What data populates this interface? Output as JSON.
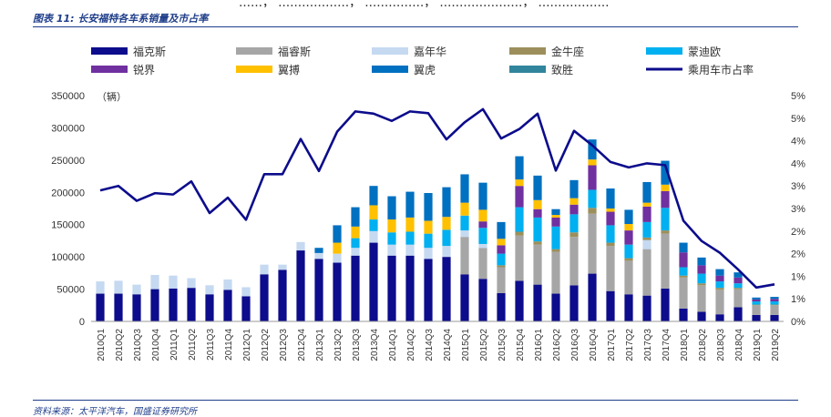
{
  "header": {
    "top_cut_text": "……，  ………………，  ……………，  …………………，  ………………",
    "title": "图表 11: 长安福特各车系销量及市占率"
  },
  "footer": {
    "source": "资料来源：太平洋汽车，国盛证券研究所"
  },
  "chart_data": {
    "type": "bar",
    "stacked": true,
    "title": "长安福特各车系销量及市占率",
    "ylabel_left": "（辆）",
    "ylim_left": [
      0,
      350000
    ],
    "yticks_left": [
      "0",
      "50000",
      "100000",
      "150000",
      "200000",
      "250000",
      "300000",
      "350000"
    ],
    "ylim_right": [
      0,
      5
    ],
    "yticks_right": [
      "0%",
      "1%",
      "1%",
      "2%",
      "2%",
      "3%",
      "3%",
      "4%",
      "4%",
      "5%",
      "5%"
    ],
    "categories": [
      "2010Q1",
      "2010Q2",
      "2010Q3",
      "2010Q4",
      "2011Q1",
      "2011Q2",
      "2011Q3",
      "2011Q4",
      "2012Q1",
      "2012Q2",
      "2012Q3",
      "2012Q4",
      "2013Q1",
      "2013Q2",
      "2013Q3",
      "2013Q4",
      "2014Q1",
      "2014Q2",
      "2014Q3",
      "2014Q4",
      "2015Q1",
      "2015Q2",
      "2015Q3",
      "2015Q4",
      "2016Q1",
      "2016Q2",
      "2016Q3",
      "2016Q4",
      "2017Q1",
      "2017Q2",
      "2017Q3",
      "2017Q4",
      "2018Q1",
      "2018Q2",
      "2018Q3",
      "2018Q4",
      "2019Q1",
      "2019Q2"
    ],
    "series": [
      {
        "name": "福克斯",
        "color": "#0c0c8c",
        "values": [
          43000,
          43000,
          42000,
          50000,
          51000,
          52000,
          42000,
          49000,
          39000,
          73000,
          80000,
          110000,
          97000,
          91000,
          102000,
          122000,
          102000,
          102000,
          97000,
          100000,
          73000,
          66000,
          44000,
          63000,
          57000,
          43000,
          56000,
          74000,
          47000,
          42000,
          40000,
          51000,
          20000,
          15000,
          11000,
          22000,
          10000,
          10000
        ]
      },
      {
        "name": "福睿斯",
        "color": "#a6a6a6",
        "values": [
          0,
          0,
          0,
          0,
          0,
          0,
          0,
          0,
          0,
          0,
          0,
          0,
          0,
          0,
          0,
          0,
          0,
          0,
          0,
          0,
          58000,
          48000,
          40000,
          70000,
          62000,
          65000,
          75000,
          93000,
          70000,
          52000,
          72000,
          85000,
          48000,
          41000,
          38000,
          28000,
          15000,
          15000
        ]
      },
      {
        "name": "嘉年华",
        "color": "#c5d9f1",
        "values": [
          19000,
          20000,
          15000,
          22000,
          20000,
          15000,
          14000,
          16000,
          14000,
          15000,
          8000,
          13000,
          9000,
          14000,
          12000,
          18000,
          17000,
          17000,
          17000,
          17000,
          10000,
          6000,
          0,
          0,
          0,
          0,
          0,
          0,
          0,
          0,
          14000,
          0,
          0,
          0,
          0,
          0,
          0,
          0
        ]
      },
      {
        "name": "金牛座",
        "color": "#9c8f5c",
        "values": [
          0,
          0,
          0,
          0,
          0,
          0,
          0,
          0,
          0,
          0,
          0,
          0,
          0,
          0,
          0,
          0,
          0,
          0,
          0,
          0,
          0,
          0,
          3000,
          6000,
          5000,
          4000,
          7000,
          9000,
          5000,
          4000,
          4000,
          5000,
          3000,
          3000,
          3000,
          2000,
          1000,
          1000
        ]
      },
      {
        "name": "蒙迪欧",
        "color": "#00b0f0",
        "values": [
          0,
          0,
          0,
          0,
          0,
          0,
          0,
          0,
          0,
          0,
          0,
          0,
          0,
          0,
          15000,
          18000,
          19000,
          20000,
          22000,
          25000,
          23000,
          25000,
          18000,
          38000,
          37000,
          35000,
          28000,
          28000,
          27000,
          21000,
          24000,
          35000,
          13000,
          15000,
          10000,
          7000,
          5000,
          5000
        ]
      },
      {
        "name": "锐界",
        "color": "#7030a0",
        "values": [
          0,
          0,
          0,
          0,
          0,
          0,
          0,
          0,
          0,
          0,
          0,
          0,
          0,
          0,
          0,
          0,
          0,
          0,
          0,
          0,
          0,
          10000,
          13000,
          33000,
          13000,
          14000,
          15000,
          38000,
          21000,
          22000,
          24000,
          26000,
          23000,
          13000,
          9000,
          9000,
          3000,
          4000
        ]
      },
      {
        "name": "翼搏",
        "color": "#ffc000",
        "values": [
          0,
          0,
          0,
          0,
          0,
          0,
          0,
          0,
          0,
          0,
          0,
          0,
          0,
          17000,
          18000,
          22000,
          20000,
          22000,
          20000,
          20000,
          20000,
          18000,
          10000,
          10000,
          14000,
          4000,
          10000,
          9000,
          5000,
          10000,
          6000,
          10000,
          0,
          0,
          0,
          0,
          0,
          0
        ]
      },
      {
        "name": "翼虎",
        "color": "#0070c0",
        "values": [
          0,
          0,
          0,
          0,
          0,
          0,
          0,
          0,
          0,
          0,
          0,
          0,
          8000,
          27000,
          30000,
          30000,
          36000,
          40000,
          43000,
          46000,
          44000,
          42000,
          26000,
          36000,
          38000,
          9000,
          28000,
          31000,
          31000,
          22000,
          32000,
          37000,
          15000,
          12000,
          10000,
          8000,
          3000,
          3000
        ]
      },
      {
        "name": "致胜",
        "color": "#31859c",
        "values": [
          0,
          0,
          0,
          0,
          0,
          0,
          0,
          0,
          0,
          0,
          0,
          0,
          0,
          0,
          0,
          0,
          0,
          0,
          0,
          0,
          0,
          0,
          0,
          0,
          0,
          0,
          0,
          0,
          0,
          0,
          0,
          0,
          0,
          0,
          0,
          0,
          0,
          0
        ]
      }
    ],
    "line_series": {
      "name": "乘用车市占率",
      "color": "#0c0c8c",
      "axis": "right",
      "values": [
        2.9,
        3.0,
        2.67,
        2.84,
        2.81,
        3.1,
        2.4,
        2.74,
        2.25,
        3.26,
        3.26,
        4.04,
        3.33,
        4.2,
        4.65,
        4.6,
        4.44,
        4.65,
        4.61,
        4.03,
        4.41,
        4.7,
        4.05,
        4.26,
        4.6,
        3.34,
        4.22,
        3.9,
        3.53,
        3.41,
        3.5,
        3.46,
        2.23,
        1.78,
        1.52,
        1.15,
        0.75,
        0.82
      ]
    },
    "legend": {
      "position": "top",
      "order": [
        "福克斯",
        "福睿斯",
        "嘉年华",
        "金牛座",
        "蒙迪欧",
        "锐界",
        "翼搏",
        "翼虎",
        "致胜",
        "乘用车市占率"
      ]
    }
  }
}
